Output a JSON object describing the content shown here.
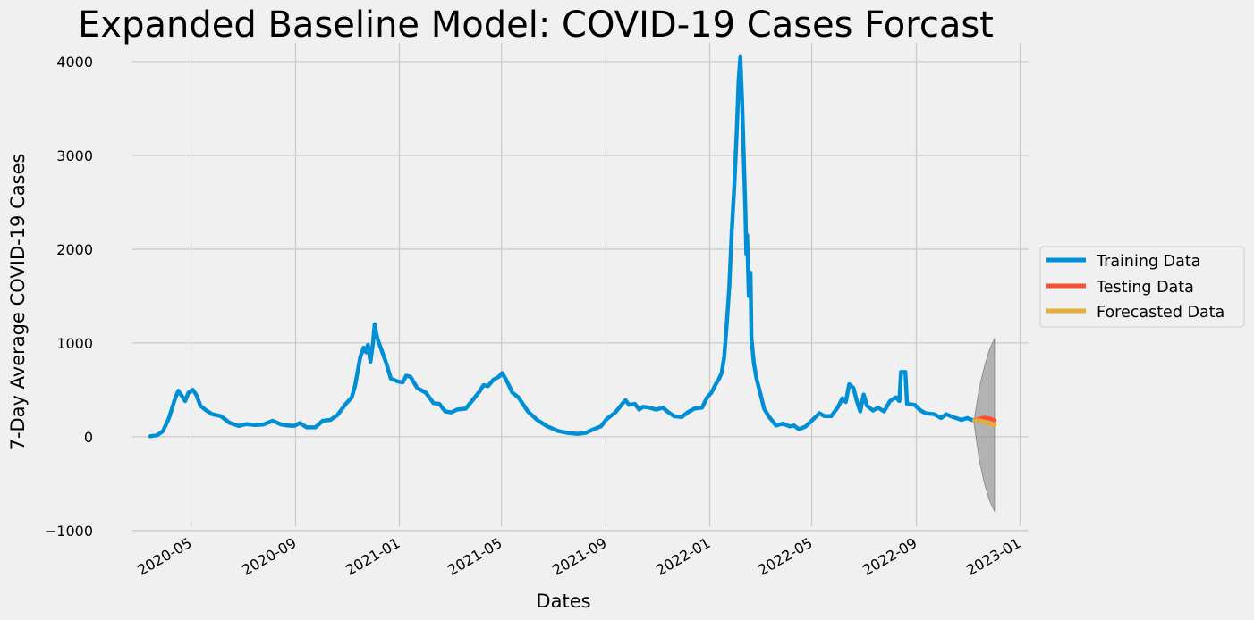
{
  "chart_data": {
    "type": "line",
    "title": "Expanded Baseline Model: COVID-19 Cases Forcast",
    "xlabel": "Dates",
    "ylabel": "7-Day Average COVID-19 Cases",
    "ylim": [
      -1000,
      4000
    ],
    "xlim": [
      "2020-02-22",
      "2023-01-11"
    ],
    "y_ticks": [
      -1000,
      0,
      1000,
      2000,
      3000,
      4000
    ],
    "y_tick_labels": [
      "−1000",
      "0",
      "1000",
      "2000",
      "3000",
      "4000"
    ],
    "x_ticks": [
      "2020-05-01",
      "2020-09-01",
      "2021-01-01",
      "2021-05-01",
      "2021-09-01",
      "2022-01-01",
      "2022-05-01",
      "2022-09-01",
      "2023-01-01"
    ],
    "x_tick_labels": [
      "2020-05",
      "2020-09",
      "2021-01",
      "2021-05",
      "2021-09",
      "2022-01",
      "2022-05",
      "2022-09",
      "2023-01"
    ],
    "grid": true,
    "legend_position": "center-right-outside",
    "colors": {
      "training": "#008fd5",
      "testing": "#fc4f30",
      "forecast": "#e5ae38",
      "interval": "#808080",
      "background": "#f0f0f0",
      "grid": "#cbcbcb"
    },
    "series": [
      {
        "name": "Training Data",
        "points": [
          [
            "2020-03-14",
            5
          ],
          [
            "2020-03-22",
            15
          ],
          [
            "2020-03-29",
            60
          ],
          [
            "2020-04-05",
            200
          ],
          [
            "2020-04-12",
            400
          ],
          [
            "2020-04-16",
            490
          ],
          [
            "2020-04-20",
            440
          ],
          [
            "2020-04-24",
            380
          ],
          [
            "2020-04-28",
            470
          ],
          [
            "2020-05-03",
            500
          ],
          [
            "2020-05-07",
            450
          ],
          [
            "2020-05-12",
            330
          ],
          [
            "2020-05-19",
            280
          ],
          [
            "2020-05-26",
            240
          ],
          [
            "2020-06-05",
            220
          ],
          [
            "2020-06-15",
            150
          ],
          [
            "2020-06-26",
            115
          ],
          [
            "2020-07-05",
            135
          ],
          [
            "2020-07-15",
            125
          ],
          [
            "2020-07-25",
            130
          ],
          [
            "2020-08-05",
            170
          ],
          [
            "2020-08-15",
            130
          ],
          [
            "2020-08-22",
            120
          ],
          [
            "2020-08-30",
            115
          ],
          [
            "2020-09-06",
            145
          ],
          [
            "2020-09-14",
            100
          ],
          [
            "2020-09-24",
            100
          ],
          [
            "2020-10-03",
            170
          ],
          [
            "2020-10-12",
            180
          ],
          [
            "2020-10-20",
            230
          ],
          [
            "2020-10-30",
            350
          ],
          [
            "2020-11-06",
            420
          ],
          [
            "2020-11-10",
            550
          ],
          [
            "2020-11-16",
            850
          ],
          [
            "2020-11-20",
            950
          ],
          [
            "2020-11-23",
            900
          ],
          [
            "2020-11-25",
            980
          ],
          [
            "2020-11-28",
            800
          ],
          [
            "2020-12-01",
            1000
          ],
          [
            "2020-12-03",
            1200
          ],
          [
            "2020-12-06",
            1050
          ],
          [
            "2020-12-10",
            950
          ],
          [
            "2020-12-16",
            800
          ],
          [
            "2020-12-22",
            620
          ],
          [
            "2020-12-30",
            590
          ],
          [
            "2021-01-05",
            580
          ],
          [
            "2021-01-09",
            650
          ],
          [
            "2021-01-14",
            640
          ],
          [
            "2021-01-22",
            520
          ],
          [
            "2021-02-01",
            470
          ],
          [
            "2021-02-10",
            360
          ],
          [
            "2021-02-17",
            350
          ],
          [
            "2021-02-24",
            270
          ],
          [
            "2021-03-03",
            260
          ],
          [
            "2021-03-10",
            290
          ],
          [
            "2021-03-20",
            300
          ],
          [
            "2021-03-29",
            400
          ],
          [
            "2021-04-05",
            480
          ],
          [
            "2021-04-10",
            550
          ],
          [
            "2021-04-15",
            540
          ],
          [
            "2021-04-22",
            610
          ],
          [
            "2021-04-28",
            640
          ],
          [
            "2021-05-02",
            680
          ],
          [
            "2021-05-07",
            600
          ],
          [
            "2021-05-14",
            470
          ],
          [
            "2021-05-21",
            420
          ],
          [
            "2021-06-01",
            270
          ],
          [
            "2021-06-12",
            180
          ],
          [
            "2021-06-24",
            110
          ],
          [
            "2021-07-07",
            60
          ],
          [
            "2021-07-18",
            40
          ],
          [
            "2021-07-30",
            30
          ],
          [
            "2021-08-08",
            40
          ],
          [
            "2021-08-15",
            70
          ],
          [
            "2021-08-26",
            110
          ],
          [
            "2021-09-02",
            190
          ],
          [
            "2021-09-12",
            260
          ],
          [
            "2021-09-20",
            350
          ],
          [
            "2021-09-24",
            390
          ],
          [
            "2021-09-28",
            340
          ],
          [
            "2021-10-05",
            350
          ],
          [
            "2021-10-10",
            290
          ],
          [
            "2021-10-15",
            320
          ],
          [
            "2021-10-22",
            310
          ],
          [
            "2021-10-30",
            290
          ],
          [
            "2021-11-07",
            310
          ],
          [
            "2021-11-12",
            270
          ],
          [
            "2021-11-20",
            220
          ],
          [
            "2021-11-29",
            210
          ],
          [
            "2021-12-06",
            260
          ],
          [
            "2021-12-14",
            300
          ],
          [
            "2021-12-23",
            310
          ],
          [
            "2021-12-29",
            420
          ],
          [
            "2022-01-03",
            470
          ],
          [
            "2022-01-08",
            560
          ],
          [
            "2022-01-12",
            620
          ],
          [
            "2022-01-15",
            680
          ],
          [
            "2022-01-18",
            850
          ],
          [
            "2022-01-21",
            1200
          ],
          [
            "2022-01-24",
            1600
          ],
          [
            "2022-01-27",
            2200
          ],
          [
            "2022-01-30",
            2700
          ],
          [
            "2022-02-02",
            3300
          ],
          [
            "2022-02-04",
            3800
          ],
          [
            "2022-02-06",
            4050
          ],
          [
            "2022-02-08",
            3600
          ],
          [
            "2022-02-10",
            3000
          ],
          [
            "2022-02-12",
            2400
          ],
          [
            "2022-02-13",
            1950
          ],
          [
            "2022-02-14",
            2150
          ],
          [
            "2022-02-16",
            1500
          ],
          [
            "2022-02-18",
            1750
          ],
          [
            "2022-02-19",
            1050
          ],
          [
            "2022-02-22",
            780
          ],
          [
            "2022-02-25",
            620
          ],
          [
            "2022-03-01",
            480
          ],
          [
            "2022-03-06",
            300
          ],
          [
            "2022-03-12",
            210
          ],
          [
            "2022-03-20",
            120
          ],
          [
            "2022-03-28",
            140
          ],
          [
            "2022-04-05",
            110
          ],
          [
            "2022-04-10",
            120
          ],
          [
            "2022-04-16",
            80
          ],
          [
            "2022-04-24",
            110
          ],
          [
            "2022-05-02",
            180
          ],
          [
            "2022-05-10",
            250
          ],
          [
            "2022-05-16",
            220
          ],
          [
            "2022-05-24",
            220
          ],
          [
            "2022-06-01",
            320
          ],
          [
            "2022-06-06",
            410
          ],
          [
            "2022-06-10",
            370
          ],
          [
            "2022-06-14",
            560
          ],
          [
            "2022-06-19",
            520
          ],
          [
            "2022-06-23",
            380
          ],
          [
            "2022-06-27",
            270
          ],
          [
            "2022-07-01",
            450
          ],
          [
            "2022-07-05",
            330
          ],
          [
            "2022-07-12",
            280
          ],
          [
            "2022-07-18",
            310
          ],
          [
            "2022-07-25",
            270
          ],
          [
            "2022-08-01",
            380
          ],
          [
            "2022-08-08",
            420
          ],
          [
            "2022-08-12",
            380
          ],
          [
            "2022-08-14",
            690
          ],
          [
            "2022-08-19",
            690
          ],
          [
            "2022-08-21",
            350
          ],
          [
            "2022-08-30",
            340
          ],
          [
            "2022-09-06",
            280
          ],
          [
            "2022-09-12",
            250
          ],
          [
            "2022-09-22",
            240
          ],
          [
            "2022-09-30",
            200
          ],
          [
            "2022-10-06",
            240
          ],
          [
            "2022-10-14",
            210
          ],
          [
            "2022-10-24",
            180
          ],
          [
            "2022-10-31",
            200
          ],
          [
            "2022-11-08",
            170
          ]
        ]
      },
      {
        "name": "Testing Data",
        "points": [
          [
            "2022-11-08",
            170
          ],
          [
            "2022-11-14",
            190
          ],
          [
            "2022-11-20",
            205
          ],
          [
            "2022-11-26",
            195
          ],
          [
            "2022-12-02",
            175
          ]
        ]
      },
      {
        "name": "Forecasted Data",
        "points": [
          [
            "2022-11-08",
            170
          ],
          [
            "2022-11-14",
            175
          ],
          [
            "2022-11-20",
            160
          ],
          [
            "2022-11-26",
            140
          ],
          [
            "2022-12-02",
            125
          ]
        ]
      }
    ],
    "interval": {
      "x": [
        "2022-11-08",
        "2022-11-14",
        "2022-11-20",
        "2022-11-26",
        "2022-12-02"
      ],
      "upper": [
        190,
        520,
        750,
        930,
        1050
      ],
      "lower": [
        130,
        -250,
        -500,
        -680,
        -800
      ]
    }
  }
}
